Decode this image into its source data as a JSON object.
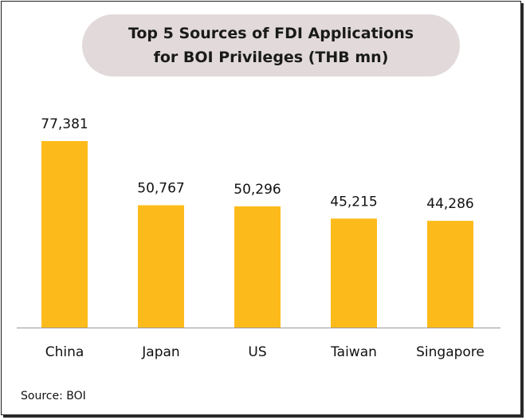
{
  "title": "Top 5 Sources of FDI Applications\nfor BOI Privileges  (THB mn)",
  "source": "Source: BOI",
  "colors": {
    "bar": "#fdbb1b",
    "title_bg": "#e2dada",
    "axis": "#9a9a9a",
    "text": "#111111"
  },
  "chart_data": {
    "type": "bar",
    "title": "Top 5 Sources of FDI Applications for BOI Privileges (THB mn)",
    "categories": [
      "China",
      "Japan",
      "US",
      "Taiwan",
      "Singapore"
    ],
    "values": [
      77381,
      50767,
      50296,
      45215,
      44286
    ],
    "value_labels": [
      "77,381",
      "50,767",
      "50,296",
      "45,215",
      "44,286"
    ],
    "xlabel": "",
    "ylabel": "",
    "ylim": [
      0,
      77381
    ],
    "grid": false,
    "legend": "none"
  }
}
